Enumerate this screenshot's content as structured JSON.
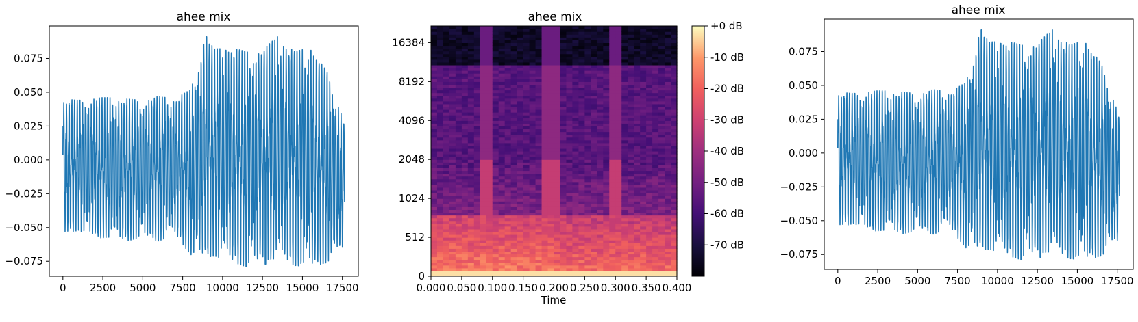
{
  "chart_data": [
    {
      "type": "line",
      "title": "ahee mix",
      "xlabel": "",
      "ylabel": "",
      "xlim": [
        -850,
        18500
      ],
      "ylim": [
        -0.086,
        0.099
      ],
      "xticks": [
        0,
        2500,
        5000,
        7500,
        10000,
        12500,
        15000,
        17500
      ],
      "yticks": [
        -0.075,
        -0.05,
        -0.025,
        0.0,
        0.025,
        0.05,
        0.075
      ],
      "ytick_labels": [
        "−0.075",
        "−0.050",
        "−0.025",
        "0.000",
        "0.025",
        "0.050",
        "0.075"
      ],
      "series_color": "#1f77b4",
      "n_samples": 17640,
      "envelope_x": [
        0,
        1000,
        2000,
        3000,
        4000,
        5000,
        6000,
        7000,
        8000,
        8900,
        9500,
        10500,
        11500,
        12500,
        13400,
        14500,
        15500,
        16500,
        17600
      ],
      "envelope_max": [
        0.045,
        0.044,
        0.046,
        0.046,
        0.045,
        0.044,
        0.047,
        0.045,
        0.052,
        0.091,
        0.082,
        0.083,
        0.08,
        0.081,
        0.091,
        0.08,
        0.083,
        0.066,
        0.03
      ],
      "envelope_min": [
        -0.055,
        -0.052,
        -0.058,
        -0.057,
        -0.06,
        -0.057,
        -0.06,
        -0.055,
        -0.07,
        -0.072,
        -0.071,
        -0.075,
        -0.079,
        -0.074,
        -0.073,
        -0.078,
        -0.079,
        -0.076,
        -0.065
      ],
      "peaks": [
        [
          9000,
          0.091
        ],
        [
          10200,
          0.081
        ],
        [
          11400,
          0.08
        ],
        [
          12500,
          0.079
        ],
        [
          13400,
          0.091
        ],
        [
          14400,
          0.078
        ],
        [
          15500,
          0.081
        ],
        [
          16600,
          0.075
        ],
        [
          17200,
          0.065
        ]
      ],
      "troughs": [
        [
          8800,
          -0.071
        ],
        [
          11500,
          -0.079
        ],
        [
          12700,
          -0.077
        ],
        [
          15700,
          -0.079
        ],
        [
          16700,
          -0.076
        ]
      ]
    },
    {
      "type": "heatmap",
      "title": "ahee mix",
      "xlabel": "Time",
      "ylabel": "",
      "xlim": [
        0.0,
        0.4
      ],
      "xticks": [
        0.0,
        0.05,
        0.1,
        0.15,
        0.2,
        0.25,
        0.3,
        0.35,
        0.4
      ],
      "xtick_labels": [
        "0.000",
        "0.050",
        "0.100",
        "0.150",
        "0.200",
        "0.250",
        "0.300",
        "0.350",
        "0.400"
      ],
      "yscale": "log2",
      "yticks": [
        0,
        512,
        1024,
        2048,
        4096,
        8192,
        16384
      ],
      "ymax_hz": 22050,
      "colorbar": {
        "label_values": [
          0,
          -10,
          -20,
          -30,
          -40,
          -50,
          -60,
          -70
        ],
        "tick_labels": [
          "+0 dB",
          "-10 dB",
          "-20 dB",
          "-30 dB",
          "-40 dB",
          "-50 dB",
          "-60 dB",
          "-70 dB"
        ],
        "vmin": -80,
        "vmax": 0,
        "colormap": "magma"
      },
      "broadband_bursts": [
        [
          0.085,
          0.1
        ],
        [
          0.185,
          0.21
        ],
        [
          0.29,
          0.31
        ]
      ],
      "low_band_cutoff_hz": 750,
      "high_band_dark_hz": 11000
    },
    {
      "type": "line",
      "title": "ahee mix",
      "xlabel": "",
      "ylabel": "",
      "xlim": [
        -850,
        18500
      ],
      "ylim": [
        -0.086,
        0.099
      ],
      "xticks": [
        0,
        2500,
        5000,
        7500,
        10000,
        12500,
        15000,
        17500
      ],
      "yticks": [
        -0.075,
        -0.05,
        -0.025,
        0.0,
        0.025,
        0.05,
        0.075
      ],
      "ytick_labels": [
        "−0.075",
        "−0.050",
        "−0.025",
        "0.000",
        "0.025",
        "0.050",
        "0.075"
      ],
      "series_color": "#1f77b4",
      "n_samples": 17640
    }
  ]
}
